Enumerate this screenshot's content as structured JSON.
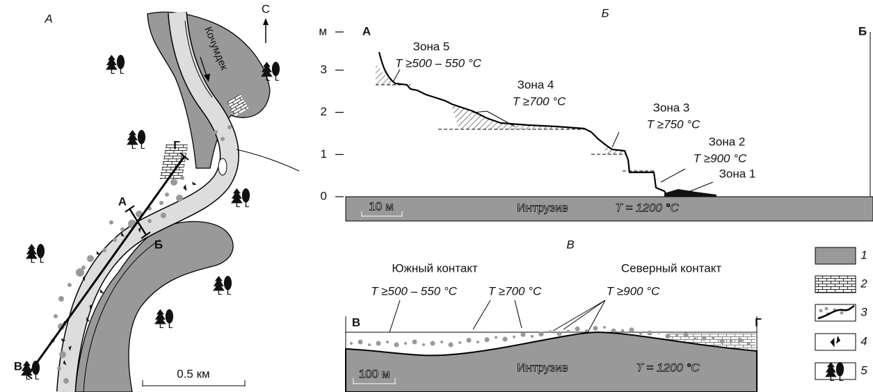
{
  "panel_a": {
    "label": "А",
    "north": "С",
    "river": "Кочумдек",
    "line_ends": {
      "start": "Г",
      "end": "В"
    },
    "section_ends": {
      "start": "А",
      "end": "Б"
    },
    "scale": "0.5 км"
  },
  "panel_b": {
    "label": "Б",
    "y_unit": "м",
    "y_ticks": [
      0,
      1,
      2,
      3
    ],
    "left_end": "А",
    "right_end": "Б",
    "zones": [
      {
        "name": "Зона 5",
        "temp": "T ≥500 – 550 °C"
      },
      {
        "name": "Зона 4",
        "temp": "T ≥700 °C"
      },
      {
        "name": "Зона 3",
        "temp": "T ≥750 °C"
      },
      {
        "name": "Зона 2",
        "temp": "T ≥900 °C"
      },
      {
        "name": "Зона 1"
      }
    ],
    "intrusion": "Интрузив",
    "intrusion_temp": "T = 1200 °C",
    "scale": "10 м"
  },
  "panel_c": {
    "label": "В",
    "south": "Южный контакт",
    "north": "Северный контакт",
    "temps": [
      "T ≥500 – 550 °C",
      "T ≥700 °C",
      "T ≥900 °C"
    ],
    "left_end": "В",
    "right_end": "Г",
    "intrusion": "Интрузив",
    "intrusion_temp": "T = 1200 °C",
    "scale": "100 м"
  },
  "legend": [
    "1",
    "2",
    "3",
    "4",
    "5"
  ]
}
